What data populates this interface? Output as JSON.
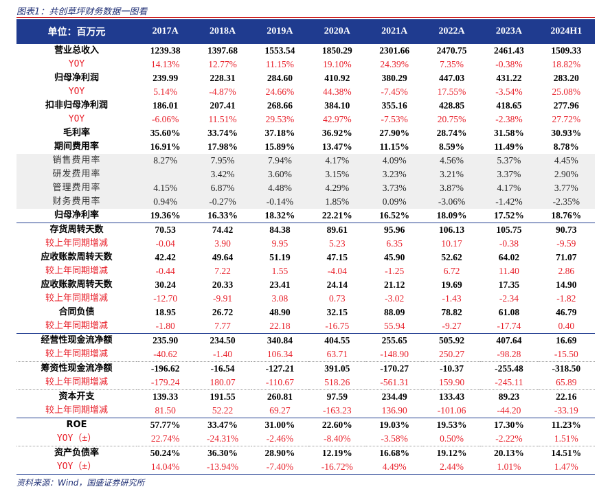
{
  "caption": "图表1：共创草坪财务数据一图看",
  "source": "资料来源：Wind，国盛证券研究所",
  "header": {
    "unit_label": "单位：百万元",
    "years": [
      "2017A",
      "2018A",
      "2019A",
      "2020A",
      "2021A",
      "2022A",
      "2023A",
      "2024H1"
    ]
  },
  "rows": [
    {
      "label": "营业总收入",
      "style": "main",
      "values": [
        "1239.38",
        "1397.68",
        "1553.54",
        "1850.29",
        "2301.66",
        "2470.75",
        "2461.43",
        "1509.33"
      ]
    },
    {
      "label": "YOY",
      "style": "sub-yoy",
      "values": [
        "14.13%",
        "12.77%",
        "11.15%",
        "19.10%",
        "24.39%",
        "7.35%",
        "-0.38%",
        "18.82%"
      ]
    },
    {
      "label": "归母净利润",
      "style": "main",
      "values": [
        "239.99",
        "228.31",
        "284.60",
        "410.92",
        "380.29",
        "447.03",
        "431.22",
        "283.20"
      ]
    },
    {
      "label": "YOY",
      "style": "sub-yoy",
      "values": [
        "5.14%",
        "-4.87%",
        "24.66%",
        "44.38%",
        "-7.45%",
        "17.55%",
        "-3.54%",
        "25.08%"
      ]
    },
    {
      "label": "扣非归母净利润",
      "style": "main",
      "values": [
        "186.01",
        "207.41",
        "268.66",
        "384.10",
        "355.16",
        "428.85",
        "418.65",
        "277.96"
      ]
    },
    {
      "label": "YOY",
      "style": "sub-yoy",
      "values": [
        "-6.06%",
        "11.51%",
        "29.53%",
        "42.97%",
        "-7.53%",
        "20.75%",
        "-2.38%",
        "27.72%"
      ]
    },
    {
      "label": "毛利率",
      "style": "main",
      "values": [
        "35.60%",
        "33.74%",
        "37.18%",
        "36.92%",
        "27.90%",
        "28.74%",
        "31.58%",
        "30.93%"
      ]
    },
    {
      "label": "期间费用率",
      "style": "main",
      "values": [
        "16.91%",
        "17.98%",
        "15.89%",
        "13.47%",
        "11.15%",
        "8.59%",
        "11.49%",
        "8.78%"
      ]
    },
    {
      "label": "销售费用率",
      "style": "grey",
      "values": [
        "8.27%",
        "7.95%",
        "7.94%",
        "4.17%",
        "4.09%",
        "4.56%",
        "5.37%",
        "4.45%"
      ]
    },
    {
      "label": "研发费用率",
      "style": "grey",
      "values": [
        "",
        "3.42%",
        "3.60%",
        "3.15%",
        "3.23%",
        "3.21%",
        "3.37%",
        "2.90%"
      ]
    },
    {
      "label": "管理费用率",
      "style": "grey",
      "values": [
        "4.15%",
        "6.87%",
        "4.48%",
        "4.29%",
        "3.73%",
        "3.87%",
        "4.17%",
        "3.77%"
      ]
    },
    {
      "label": "财务费用率",
      "style": "grey",
      "values": [
        "0.94%",
        "-0.27%",
        "-0.14%",
        "1.85%",
        "0.09%",
        "-3.06%",
        "-1.42%",
        "-2.35%"
      ]
    },
    {
      "label": "归母净利率",
      "style": "main-bl",
      "values": [
        "19.36%",
        "16.33%",
        "18.32%",
        "22.21%",
        "16.52%",
        "18.09%",
        "17.52%",
        "18.76%"
      ]
    },
    {
      "label": "存货周转天数",
      "style": "main",
      "values": [
        "70.53",
        "74.42",
        "84.38",
        "89.61",
        "95.96",
        "106.13",
        "105.75",
        "90.73"
      ]
    },
    {
      "label": "较上年同期增减",
      "style": "sub",
      "values": [
        "-0.04",
        "3.90",
        "9.95",
        "5.23",
        "6.35",
        "10.17",
        "-0.38",
        "-9.59"
      ]
    },
    {
      "label": "应收账款周转天数",
      "style": "main",
      "values": [
        "42.42",
        "49.64",
        "51.19",
        "47.15",
        "45.90",
        "52.62",
        "64.02",
        "71.07"
      ]
    },
    {
      "label": "较上年同期增减",
      "style": "sub",
      "values": [
        "-0.44",
        "7.22",
        "1.55",
        "-4.04",
        "-1.25",
        "6.72",
        "11.40",
        "2.86"
      ]
    },
    {
      "label": "应收账款周转天数",
      "style": "main",
      "values": [
        "30.24",
        "20.33",
        "23.41",
        "24.14",
        "21.12",
        "19.69",
        "17.35",
        "14.90"
      ]
    },
    {
      "label": "较上年同期增减",
      "style": "sub",
      "values": [
        "-12.70",
        "-9.91",
        "3.08",
        "0.73",
        "-3.02",
        "-1.43",
        "-2.34",
        "-1.82"
      ]
    },
    {
      "label": "合同负债",
      "style": "main",
      "values": [
        "18.95",
        "26.72",
        "48.90",
        "32.15",
        "88.09",
        "78.82",
        "61.08",
        "46.79"
      ]
    },
    {
      "label": "较上年同期增减",
      "style": "sub-bl",
      "values": [
        "-1.80",
        "7.77",
        "22.18",
        "-16.75",
        "55.94",
        "-9.27",
        "-17.74",
        "0.40"
      ]
    },
    {
      "label": "经营性现金流净额",
      "style": "main",
      "values": [
        "235.90",
        "234.50",
        "340.84",
        "404.55",
        "255.65",
        "505.92",
        "407.64",
        "16.69"
      ]
    },
    {
      "label": "较上年同期增减",
      "style": "sub-bd",
      "values": [
        "-40.62",
        "-1.40",
        "106.34",
        "63.71",
        "-148.90",
        "250.27",
        "-98.28",
        "-15.50"
      ]
    },
    {
      "label": "筹资性现金流净额",
      "style": "main",
      "values": [
        "-196.62",
        "-16.54",
        "-127.21",
        "391.05",
        "-170.27",
        "-10.37",
        "-255.48",
        "-318.50"
      ]
    },
    {
      "label": "较上年同期增减",
      "style": "sub-bd",
      "values": [
        "-179.24",
        "180.07",
        "-110.67",
        "518.26",
        "-561.31",
        "159.90",
        "-245.11",
        "65.89"
      ]
    },
    {
      "label": "资本开支",
      "style": "main",
      "values": [
        "139.33",
        "191.55",
        "260.81",
        "97.59",
        "234.49",
        "133.43",
        "89.23",
        "22.16"
      ]
    },
    {
      "label": "较上年同期增减",
      "style": "sub-bl",
      "values": [
        "81.50",
        "52.22",
        "69.27",
        "-163.23",
        "136.90",
        "-101.06",
        "-44.20",
        "-33.19"
      ]
    },
    {
      "label": "ROE",
      "style": "main",
      "values": [
        "57.77%",
        "33.47%",
        "31.00%",
        "22.60%",
        "19.03%",
        "19.53%",
        "17.30%",
        "11.23%"
      ]
    },
    {
      "label": "YOY（±）",
      "style": "sub-yoy-bd",
      "values": [
        "22.74%",
        "-24.31%",
        "-2.46%",
        "-8.40%",
        "-3.58%",
        "0.50%",
        "-2.22%",
        "1.51%"
      ]
    },
    {
      "label": "资产负债率",
      "style": "main",
      "values": [
        "50.24%",
        "36.30%",
        "28.90%",
        "12.19%",
        "16.68%",
        "19.12%",
        "20.13%",
        "14.51%"
      ]
    },
    {
      "label": "YOY（±）",
      "style": "sub-yoy-bl",
      "values": [
        "14.04%",
        "-13.94%",
        "-7.40%",
        "-16.72%",
        "4.49%",
        "2.44%",
        "1.01%",
        "1.47%"
      ]
    }
  ]
}
